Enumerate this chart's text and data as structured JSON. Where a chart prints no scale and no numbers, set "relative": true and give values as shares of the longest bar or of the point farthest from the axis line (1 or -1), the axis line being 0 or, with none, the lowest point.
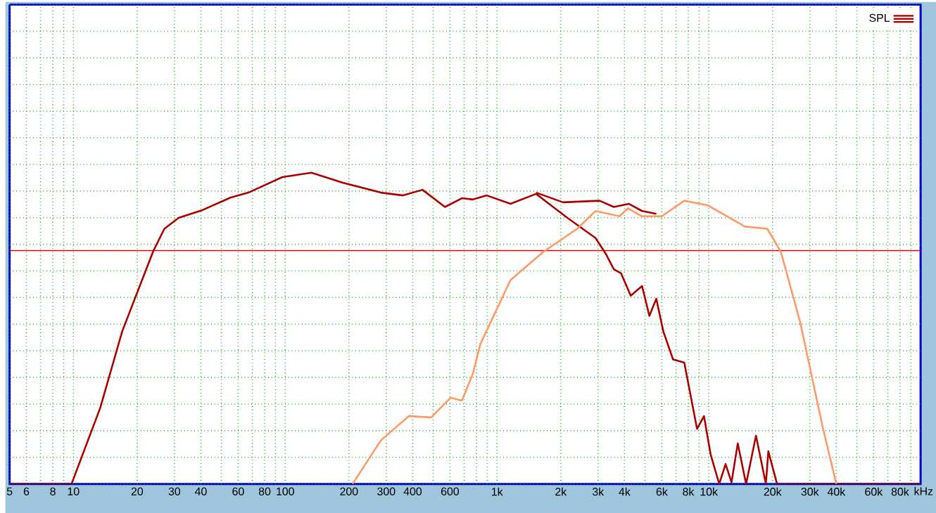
{
  "chart_data": {
    "type": "line",
    "relative": true,
    "log": "x",
    "xlabel": "kHz",
    "xlim": [
      5,
      100000
    ],
    "xticks": [
      5,
      6,
      {
        "value": 7,
        "label": null
      },
      8,
      {
        "value": 9,
        "label": null
      },
      10,
      20,
      30,
      40,
      {
        "value": 50,
        "label": null
      },
      60,
      {
        "value": 70,
        "label": null
      },
      80,
      {
        "value": 90,
        "label": null
      },
      100,
      200,
      300,
      400,
      {
        "value": 500,
        "label": null
      },
      600,
      {
        "value": 700,
        "label": null
      },
      {
        "value": 800,
        "label": null
      },
      {
        "value": 900,
        "label": null
      },
      {
        "value": 1000,
        "label": "1k"
      },
      {
        "value": 2000,
        "label": "2k"
      },
      {
        "value": 3000,
        "label": "3k"
      },
      {
        "value": 4000,
        "label": "4k"
      },
      {
        "value": 5000,
        "label": null
      },
      {
        "value": 6000,
        "label": "6k"
      },
      {
        "value": 7000,
        "label": null
      },
      {
        "value": 8000,
        "label": "8k"
      },
      {
        "value": 9000,
        "label": null
      },
      {
        "value": 10000,
        "label": "10k"
      },
      {
        "value": 20000,
        "label": "20k"
      },
      {
        "value": 30000,
        "label": "30k"
      },
      {
        "value": 40000,
        "label": "40k"
      },
      {
        "value": 50000,
        "label": null
      },
      {
        "value": 60000,
        "label": "60k"
      },
      {
        "value": 70000,
        "label": null
      },
      {
        "value": 80000,
        "label": "80k"
      },
      {
        "value": 90000,
        "label": null
      }
    ],
    "grid": true,
    "legend": "top right",
    "line_style": "solid",
    "marker": "none",
    "ref_lines": [
      {
        "axis": "y",
        "value": 0.75,
        "color": "#e00000"
      }
    ],
    "series": [
      {
        "name": "SPL",
        "color": "#aa0000",
        "x": [
          5,
          9.8,
          13.4,
          17,
          21.1,
          23.9,
          26.9,
          31.4,
          40.7,
          55.1,
          67,
          97,
          133,
          187,
          283,
          360,
          445,
          568,
          683,
          770,
          895,
          1158,
          1530,
          1760,
          2150,
          2920,
          3260,
          3560,
          3850,
          4280,
          4840,
          5240,
          5650,
          6100,
          6780,
          7660,
          8800,
          9490,
          10200,
          11200,
          12000,
          12800,
          13700,
          15000,
          16700,
          18600,
          19100,
          21000,
          100000
        ],
        "values": [
          0,
          0,
          0.245,
          0.49,
          0.655,
          0.75,
          0.82,
          0.855,
          0.88,
          0.92,
          0.936,
          0.986,
          1,
          0.968,
          0.936,
          0.927,
          0.945,
          0.89,
          0.918,
          0.914,
          0.927,
          0.9,
          0.932,
          0.9,
          0.855,
          0.79,
          0.74,
          0.69,
          0.677,
          0.605,
          0.636,
          0.54,
          0.595,
          0.49,
          0.4,
          0.39,
          0.177,
          0.218,
          0.095,
          0,
          0.064,
          0.005,
          0.13,
          0,
          0.155,
          0,
          0.105,
          0,
          0
        ]
      },
      {
        "color": "#aa0000",
        "x": [
          1530,
          2050,
          3050,
          3560,
          4200,
          4840,
          5650
        ],
        "values": [
          0.936,
          0.905,
          0.91,
          0.89,
          0.9,
          0.877,
          0.868
        ]
      },
      {
        "color": "#ff9966",
        "x": [
          208,
          283,
          384,
          489,
          604,
          683,
          770,
          835,
          1158,
          1650,
          2390,
          2920,
          3790,
          4150,
          4840,
          6000,
          7660,
          9900,
          14800,
          18900,
          21900,
          27000,
          34400,
          40000
        ],
        "values": [
          0,
          0.14,
          0.218,
          0.214,
          0.277,
          0.268,
          0.355,
          0.45,
          0.655,
          0.745,
          0.82,
          0.877,
          0.86,
          0.886,
          0.86,
          0.86,
          0.91,
          0.895,
          0.827,
          0.82,
          0.745,
          0.52,
          0.186,
          0
        ]
      }
    ]
  }
}
